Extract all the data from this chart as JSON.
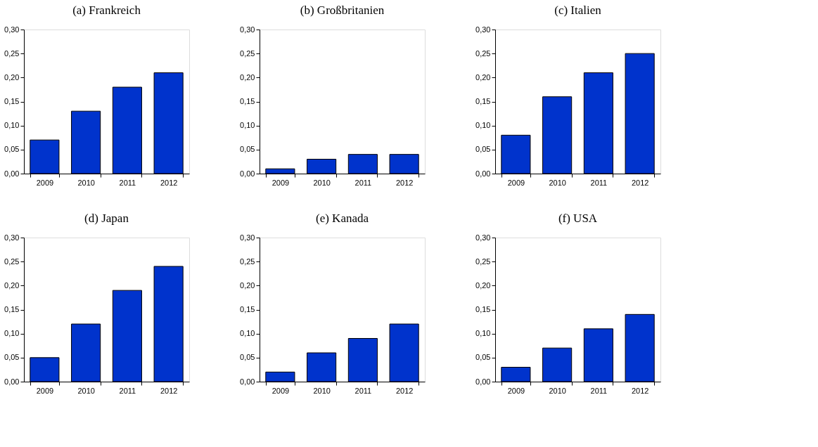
{
  "chart_data": [
    {
      "type": "bar",
      "title": "(a) Frankreich",
      "categories": [
        "2009",
        "2010",
        "2011",
        "2012"
      ],
      "values": [
        0.07,
        0.13,
        0.18,
        0.21
      ],
      "color": "#0033cc",
      "ylim": [
        0,
        0.3
      ],
      "yticks": [
        {
          "value": 0,
          "label": "0,00"
        },
        {
          "value": 0.05,
          "label": "0,05"
        },
        {
          "value": 0.1,
          "label": "0,10"
        },
        {
          "value": 0.15,
          "label": "0,15"
        },
        {
          "value": 0.2,
          "label": "0,20"
        },
        {
          "value": 0.25,
          "label": "0,25"
        },
        {
          "value": 0.3,
          "label": "0,30"
        }
      ],
      "grid": false
    },
    {
      "type": "bar",
      "title": "(b) Großbritanien",
      "categories": [
        "2009",
        "2010",
        "2011",
        "2012"
      ],
      "values": [
        0.01,
        0.03,
        0.04,
        0.04
      ],
      "color": "#0033cc",
      "ylim": [
        0,
        0.3
      ],
      "yticks": [
        {
          "value": 0,
          "label": "0,00"
        },
        {
          "value": 0.05,
          "label": "0,05"
        },
        {
          "value": 0.1,
          "label": "0,10"
        },
        {
          "value": 0.15,
          "label": "0,15"
        },
        {
          "value": 0.2,
          "label": "0,20"
        },
        {
          "value": 0.25,
          "label": "0,25"
        },
        {
          "value": 0.3,
          "label": "0,30"
        }
      ],
      "grid": false
    },
    {
      "type": "bar",
      "title": "(c) Italien",
      "categories": [
        "2009",
        "2010",
        "2011",
        "2012"
      ],
      "values": [
        0.08,
        0.16,
        0.21,
        0.25
      ],
      "color": "#0033cc",
      "ylim": [
        0,
        0.3
      ],
      "yticks": [
        {
          "value": 0,
          "label": "0,00"
        },
        {
          "value": 0.05,
          "label": "0,05"
        },
        {
          "value": 0.1,
          "label": "0,10"
        },
        {
          "value": 0.15,
          "label": "0,15"
        },
        {
          "value": 0.2,
          "label": "0,20"
        },
        {
          "value": 0.25,
          "label": "0,25"
        },
        {
          "value": 0.3,
          "label": "0,30"
        }
      ],
      "grid": false
    },
    {
      "type": "bar",
      "title": "(d) Japan",
      "categories": [
        "2009",
        "2010",
        "2011",
        "2012"
      ],
      "values": [
        0.05,
        0.12,
        0.19,
        0.24
      ],
      "color": "#0033cc",
      "ylim": [
        0,
        0.3
      ],
      "yticks": [
        {
          "value": 0,
          "label": "0,00"
        },
        {
          "value": 0.05,
          "label": "0,05"
        },
        {
          "value": 0.1,
          "label": "0,10"
        },
        {
          "value": 0.15,
          "label": "0,15"
        },
        {
          "value": 0.2,
          "label": "0,20"
        },
        {
          "value": 0.25,
          "label": "0,25"
        },
        {
          "value": 0.3,
          "label": "0,30"
        }
      ],
      "grid": false
    },
    {
      "type": "bar",
      "title": "(e) Kanada",
      "categories": [
        "2009",
        "2010",
        "2011",
        "2012"
      ],
      "values": [
        0.02,
        0.06,
        0.09,
        0.12
      ],
      "color": "#0033cc",
      "ylim": [
        0,
        0.3
      ],
      "yticks": [
        {
          "value": 0,
          "label": "0,00"
        },
        {
          "value": 0.05,
          "label": "0,05"
        },
        {
          "value": 0.1,
          "label": "0,10"
        },
        {
          "value": 0.15,
          "label": "0,15"
        },
        {
          "value": 0.2,
          "label": "0,20"
        },
        {
          "value": 0.25,
          "label": "0,25"
        },
        {
          "value": 0.3,
          "label": "0,30"
        }
      ],
      "grid": false
    },
    {
      "type": "bar",
      "title": "(f) USA",
      "categories": [
        "2009",
        "2010",
        "2011",
        "2012"
      ],
      "values": [
        0.03,
        0.07,
        0.11,
        0.14
      ],
      "color": "#0033cc",
      "ylim": [
        0,
        0.3
      ],
      "yticks": [
        {
          "value": 0,
          "label": "0,00"
        },
        {
          "value": 0.05,
          "label": "0,05"
        },
        {
          "value": 0.1,
          "label": "0,10"
        },
        {
          "value": 0.15,
          "label": "0,15"
        },
        {
          "value": 0.2,
          "label": "0,20"
        },
        {
          "value": 0.25,
          "label": "0,25"
        },
        {
          "value": 0.3,
          "label": "0,30"
        }
      ],
      "grid": false
    }
  ]
}
